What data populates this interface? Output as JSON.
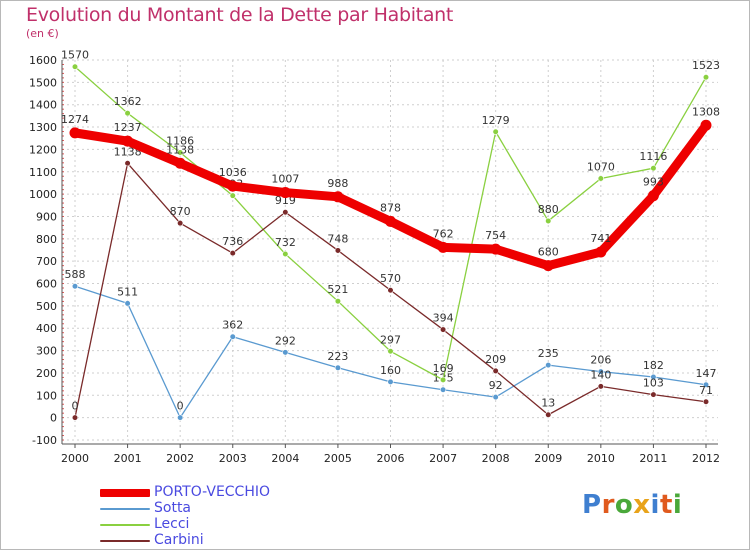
{
  "title": "Evolution du Montant de la Dette par Habitant",
  "unit": "(en €)",
  "logo": {
    "letters": [
      "P",
      "r",
      "o",
      "x",
      "i",
      "t",
      "i"
    ],
    "colors": [
      "#3f7fd0",
      "#e05a1e",
      "#4aa83a",
      "#e8a31a",
      "#3f7fd0",
      "#e05a1e",
      "#4aa83a"
    ]
  },
  "chart_data": {
    "type": "line",
    "x": [
      "2000",
      "2001",
      "2002",
      "2003",
      "2004",
      "2005",
      "2006",
      "2007",
      "2008",
      "2009",
      "2010",
      "2011",
      "2012"
    ],
    "ylim": [
      -100,
      1600
    ],
    "yticks": [
      -100,
      0,
      100,
      200,
      300,
      400,
      500,
      600,
      700,
      800,
      900,
      1000,
      1100,
      1200,
      1300,
      1400,
      1500,
      1600
    ],
    "grid": true,
    "legend_position": "bottom-left",
    "series": [
      {
        "name": "PORTO-VECCHIO",
        "color": "#ee0000",
        "emphasis": true,
        "values": [
          1274,
          1237,
          1138,
          1036,
          1007,
          988,
          878,
          762,
          754,
          680,
          741,
          993,
          1308
        ]
      },
      {
        "name": "Sotta",
        "color": "#5a9ad0",
        "values": [
          588,
          511,
          0,
          362,
          292,
          223,
          160,
          125,
          92,
          235,
          206,
          182,
          147
        ]
      },
      {
        "name": "Lecci",
        "color": "#8ad040",
        "values": [
          1570,
          1362,
          1186,
          993,
          732,
          521,
          297,
          169,
          1279,
          880,
          1070,
          1116,
          1523
        ]
      },
      {
        "name": "Carbini",
        "color": "#7a2a2a",
        "values": [
          0,
          1138,
          870,
          736,
          919,
          748,
          570,
          394,
          209,
          13,
          140,
          103,
          71
        ]
      }
    ]
  }
}
